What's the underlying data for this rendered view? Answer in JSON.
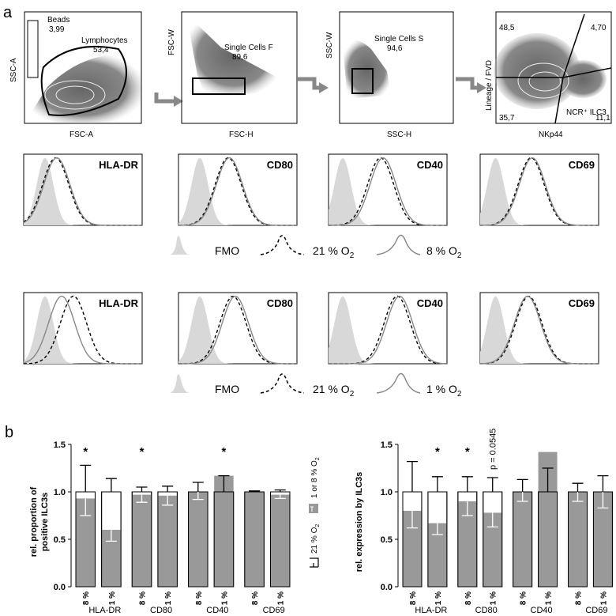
{
  "panel_a_label": "a",
  "panel_b_label": "b",
  "gating": [
    {
      "xlabel": "FSC-A",
      "ylabel": "SSC-A",
      "gates": [
        {
          "name": "Beads",
          "value": "3,99"
        },
        {
          "name": "Lymphocytes",
          "value": "53,4"
        }
      ]
    },
    {
      "xlabel": "FSC-H",
      "ylabel": "FSC-W",
      "gates": [
        {
          "name": "Single Cells F",
          "value": "89,6"
        }
      ]
    },
    {
      "xlabel": "SSC-H",
      "ylabel": "SSC-W",
      "gates": [
        {
          "name": "Single Cells S",
          "value": "94,6"
        }
      ]
    },
    {
      "xlabel": "NKp44",
      "ylabel": "Lineage / FVD",
      "quadrants": {
        "top_left": "48,5",
        "top_right": "4,70",
        "bottom_left": "35,7",
        "bottom_right": "11,1"
      },
      "gate_label": "NCR⁺ ILC3"
    }
  ],
  "histograms": {
    "markers": [
      "HLA-DR",
      "CD80",
      "CD40",
      "CD69"
    ],
    "legend_row1": {
      "fmo": "FMO",
      "ref": "21 % O",
      "ref_sub": "2",
      "cond": "8 % O",
      "cond_sub": "2"
    },
    "legend_row2": {
      "fmo": "FMO",
      "ref": "21 % O",
      "ref_sub": "2",
      "cond": "1 % O",
      "cond_sub": "2"
    }
  },
  "legend_b": {
    "first": "21 % O",
    "first_sub": "2",
    "second": "1 or 8 % O",
    "second_sub": "2"
  },
  "colors": {
    "gray_fill": "#d8d8d8",
    "bar_gray": "#999999",
    "dashed": "#000000",
    "solid": "#888888"
  },
  "chart_data": [
    {
      "type": "bar",
      "ylabel": "rel. proportion of positive ILC3s",
      "ylim": [
        0,
        1.5
      ],
      "yticks": [
        "0.0",
        "0.5",
        "1.0",
        "1.5"
      ],
      "groups": [
        "HLA-DR",
        "CD80",
        "CD40",
        "CD69"
      ],
      "bar_labels": [
        "8 %",
        "1 %",
        "8 %",
        "1 %",
        "8 %",
        "1 %",
        "8 %",
        "1 %"
      ],
      "series": [
        {
          "values": [
            1.0,
            1.0,
            1.0,
            1.0,
            1.0,
            1.0,
            1.0,
            1.0
          ],
          "err": [
            0.28,
            0.14,
            0.05,
            0.06,
            0.1,
            0.17,
            0.01,
            0.02
          ]
        },
        {
          "values": [
            0.93,
            0.6,
            0.97,
            0.96,
            1.0,
            1.17,
            1.0,
            0.97
          ],
          "err": [
            0.18,
            0.12,
            0.08,
            0.1,
            0.08,
            0.0,
            0.0,
            0.04
          ]
        }
      ],
      "stars": [
        "*",
        "",
        "*",
        "",
        "",
        "*",
        "",
        ""
      ]
    },
    {
      "type": "bar",
      "ylabel": "rel. expression by ILC3s",
      "ylim": [
        0,
        1.5
      ],
      "yticks": [
        "0.0",
        "0.5",
        "1.0",
        "1.5"
      ],
      "groups": [
        "HLA-DR",
        "CD80",
        "CD40",
        "CD69"
      ],
      "bar_labels": [
        "8 %",
        "1 %",
        "8 %",
        "1 %",
        "8 %",
        "1 %",
        "8 %",
        "1 %"
      ],
      "series": [
        {
          "values": [
            1.0,
            1.0,
            1.0,
            1.0,
            1.0,
            1.0,
            1.0,
            1.0
          ],
          "err": [
            0.32,
            0.16,
            0.16,
            0.15,
            0.13,
            0.25,
            0.09,
            0.17
          ]
        },
        {
          "values": [
            0.8,
            0.67,
            0.9,
            0.78,
            1.0,
            1.42,
            1.0,
            1.0
          ],
          "err": [
            0.18,
            0.12,
            0.15,
            0.15,
            0.1,
            0.0,
            0.1,
            0.17
          ]
        }
      ],
      "stars": [
        "",
        "*",
        "*",
        "",
        "",
        "",
        "",
        ""
      ],
      "annotation": "p = 0.0545"
    }
  ]
}
